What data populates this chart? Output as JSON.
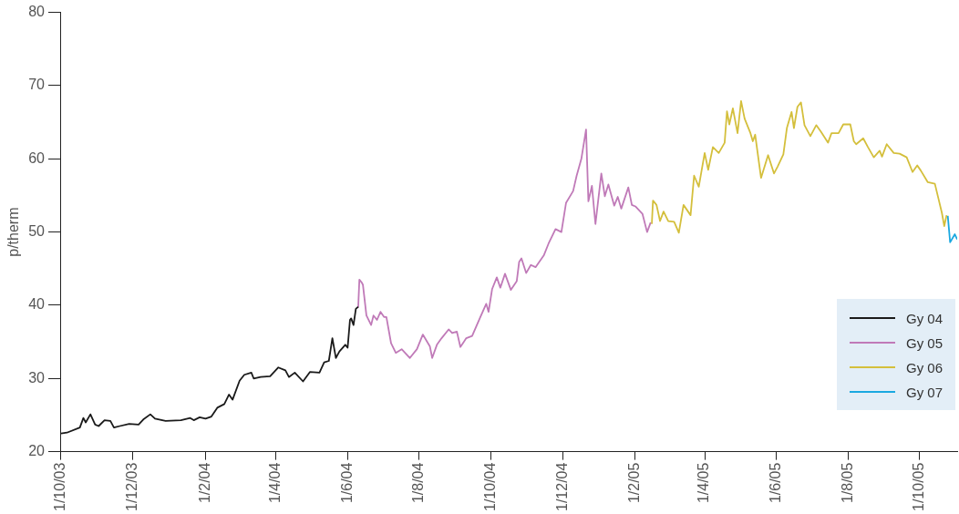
{
  "chart_data": {
    "type": "line",
    "ylabel": "p/therm",
    "xlim": [
      "2003-10-01",
      "2005-11-02"
    ],
    "ylim": [
      20,
      80
    ],
    "yticks": [
      20,
      30,
      40,
      50,
      60,
      70,
      80
    ],
    "xticks": [
      {
        "value": "2003-10-01",
        "label": "1/10/03"
      },
      {
        "value": "2003-12-01",
        "label": "1/12/03"
      },
      {
        "value": "2004-02-01",
        "label": "1/2/04"
      },
      {
        "value": "2004-04-01",
        "label": "1/4/04"
      },
      {
        "value": "2004-06-01",
        "label": "1/6/04"
      },
      {
        "value": "2004-08-01",
        "label": "1/8/04"
      },
      {
        "value": "2004-10-01",
        "label": "1/10/04"
      },
      {
        "value": "2004-12-01",
        "label": "1/12/04"
      },
      {
        "value": "2005-02-01",
        "label": "1/2/05"
      },
      {
        "value": "2005-04-01",
        "label": "1/4/05"
      },
      {
        "value": "2005-06-01",
        "label": "1/6/05"
      },
      {
        "value": "2005-08-01",
        "label": "1/8/05"
      },
      {
        "value": "2005-10-01",
        "label": "1/10/05"
      }
    ],
    "grid": false,
    "legend": "bottom right",
    "marker": "none",
    "line_style": "solid",
    "series": [
      {
        "name": "Gy 04",
        "color": "#1a1a1a",
        "x": [
          "2003-10-01",
          "2003-10-06",
          "2003-10-17",
          "2003-10-20",
          "2003-10-22",
          "2003-10-26",
          "2003-10-30",
          "2003-11-02",
          "2003-11-07",
          "2003-11-12",
          "2003-11-15",
          "2003-11-20",
          "2003-11-28",
          "2003-12-06",
          "2003-12-10",
          "2003-12-16",
          "2003-12-20",
          "2003-12-29",
          "2004-01-11",
          "2004-01-19",
          "2004-01-22",
          "2004-01-27",
          "2004-02-01",
          "2004-02-06",
          "2004-02-11",
          "2004-02-17",
          "2004-02-21",
          "2004-02-24",
          "2004-03-01",
          "2004-03-05",
          "2004-03-11",
          "2004-03-13",
          "2004-03-19",
          "2004-03-27",
          "2004-04-03",
          "2004-04-09",
          "2004-04-12",
          "2004-04-17",
          "2004-04-24",
          "2004-04-30",
          "2004-05-08",
          "2004-05-12",
          "2004-05-16",
          "2004-05-19",
          "2004-05-22",
          "2004-05-25",
          "2004-05-30",
          "2004-06-01",
          "2004-06-03",
          "2004-06-04",
          "2004-06-06",
          "2004-06-08",
          "2004-06-10"
        ],
        "values": [
          22.5,
          22.6,
          23.3,
          24.6,
          24.0,
          25.1,
          23.7,
          23.5,
          24.3,
          24.2,
          23.3,
          23.5,
          23.8,
          23.7,
          24.4,
          25.1,
          24.5,
          24.2,
          24.3,
          24.6,
          24.3,
          24.7,
          24.5,
          24.8,
          26.0,
          26.5,
          27.8,
          27.1,
          29.7,
          30.5,
          30.8,
          30.0,
          30.2,
          30.3,
          31.5,
          31.1,
          30.2,
          30.8,
          29.6,
          30.9,
          30.8,
          32.2,
          32.4,
          35.5,
          32.8,
          33.7,
          34.6,
          34.2,
          38.0,
          38.2,
          37.3,
          39.5,
          39.8
        ]
      },
      {
        "name": "Gy 05",
        "color": "#c07ab8",
        "x": [
          "2004-06-10",
          "2004-06-11",
          "2004-06-13",
          "2004-06-14",
          "2004-06-17",
          "2004-06-21",
          "2004-06-23",
          "2004-06-26",
          "2004-06-29",
          "2004-07-02",
          "2004-07-04",
          "2004-07-08",
          "2004-07-12",
          "2004-07-17",
          "2004-07-24",
          "2004-07-30",
          "2004-08-04",
          "2004-08-10",
          "2004-08-12",
          "2004-08-16",
          "2004-08-20",
          "2004-08-26",
          "2004-08-29",
          "2004-09-02",
          "2004-09-05",
          "2004-09-10",
          "2004-09-15",
          "2004-09-22",
          "2004-09-27",
          "2004-09-29",
          "2004-10-02",
          "2004-10-06",
          "2004-10-09",
          "2004-10-13",
          "2004-10-18",
          "2004-10-23",
          "2004-10-25",
          "2004-10-27",
          "2004-10-31",
          "2004-11-04",
          "2004-11-08",
          "2004-11-15",
          "2004-11-19",
          "2004-11-25",
          "2004-11-30",
          "2004-12-04",
          "2004-12-10",
          "2004-12-13",
          "2004-12-17",
          "2004-12-21",
          "2004-12-23",
          "2004-12-26",
          "2004-12-29",
          "2005-01-03",
          "2005-01-06",
          "2005-01-09",
          "2005-01-14",
          "2005-01-17",
          "2005-01-20",
          "2005-01-26",
          "2005-01-29",
          "2005-02-01",
          "2005-02-07",
          "2005-02-11",
          "2005-02-14"
        ],
        "values": [
          39.7,
          43.5,
          43.1,
          42.8,
          38.6,
          37.3,
          38.6,
          38.0,
          39.1,
          38.4,
          38.4,
          34.8,
          33.5,
          34.0,
          32.8,
          34.0,
          36.0,
          34.4,
          32.8,
          34.6,
          35.5,
          36.7,
          36.2,
          36.4,
          34.3,
          35.5,
          35.8,
          38.4,
          40.2,
          39.1,
          42.2,
          43.8,
          42.4,
          44.3,
          42.1,
          43.3,
          45.9,
          46.4,
          44.4,
          45.5,
          45.2,
          46.8,
          48.4,
          50.4,
          50.0,
          54.0,
          55.6,
          57.7,
          60.0,
          64.0,
          54.2,
          56.3,
          51.1,
          58.0,
          54.9,
          56.5,
          53.6,
          54.8,
          53.2,
          56.1,
          53.7,
          53.5,
          52.5,
          50.0,
          51.3
        ]
      },
      {
        "name": "Gy 06",
        "color": "#d4bf3c",
        "x": [
          "2005-02-15",
          "2005-02-16",
          "2005-02-19",
          "2005-02-22",
          "2005-02-25",
          "2005-03-01",
          "2005-03-06",
          "2005-03-10",
          "2005-03-14",
          "2005-03-20",
          "2005-03-23",
          "2005-03-27",
          "2005-04-01",
          "2005-04-04",
          "2005-04-08",
          "2005-04-13",
          "2005-04-18",
          "2005-04-20",
          "2005-04-22",
          "2005-04-25",
          "2005-04-29",
          "2005-05-02",
          "2005-05-05",
          "2005-05-10",
          "2005-05-12",
          "2005-05-14",
          "2005-05-19",
          "2005-05-25",
          "2005-05-30",
          "2005-06-02",
          "2005-06-07",
          "2005-06-10",
          "2005-06-14",
          "2005-06-16",
          "2005-06-19",
          "2005-06-22",
          "2005-06-25",
          "2005-06-30",
          "2005-07-05",
          "2005-07-09",
          "2005-07-15",
          "2005-07-18",
          "2005-07-24",
          "2005-07-28",
          "2005-08-03",
          "2005-08-06",
          "2005-08-08",
          "2005-08-14",
          "2005-08-18",
          "2005-08-23",
          "2005-08-28",
          "2005-08-30",
          "2005-09-03",
          "2005-09-09",
          "2005-09-14",
          "2005-09-20",
          "2005-09-25",
          "2005-09-29",
          "2005-10-02",
          "2005-10-08",
          "2005-10-14",
          "2005-10-17",
          "2005-10-20",
          "2005-10-22",
          "2005-10-24"
        ],
        "values": [
          51.1,
          54.3,
          53.7,
          51.5,
          52.8,
          51.5,
          51.4,
          49.9,
          53.7,
          52.3,
          57.7,
          56.2,
          60.8,
          58.5,
          61.6,
          60.8,
          62.2,
          66.5,
          64.7,
          66.9,
          63.5,
          67.9,
          65.5,
          63.5,
          62.4,
          63.3,
          57.4,
          60.5,
          58.0,
          58.9,
          60.6,
          64.2,
          66.4,
          64.2,
          67.1,
          67.7,
          64.6,
          63.1,
          64.6,
          63.7,
          62.2,
          63.5,
          63.5,
          64.7,
          64.7,
          62.4,
          62.0,
          62.8,
          61.6,
          60.2,
          61.1,
          60.3,
          62.0,
          60.8,
          60.7,
          60.2,
          58.2,
          59.1,
          58.4,
          56.8,
          56.6,
          54.6,
          52.6,
          50.8,
          52.3
        ]
      },
      {
        "name": "Gy 07",
        "color": "#1aa8e0",
        "x": [
          "2005-10-25",
          "2005-10-27",
          "2005-10-31",
          "2005-11-02"
        ],
        "values": [
          52.2,
          48.6,
          49.7,
          49.0
        ]
      }
    ]
  }
}
